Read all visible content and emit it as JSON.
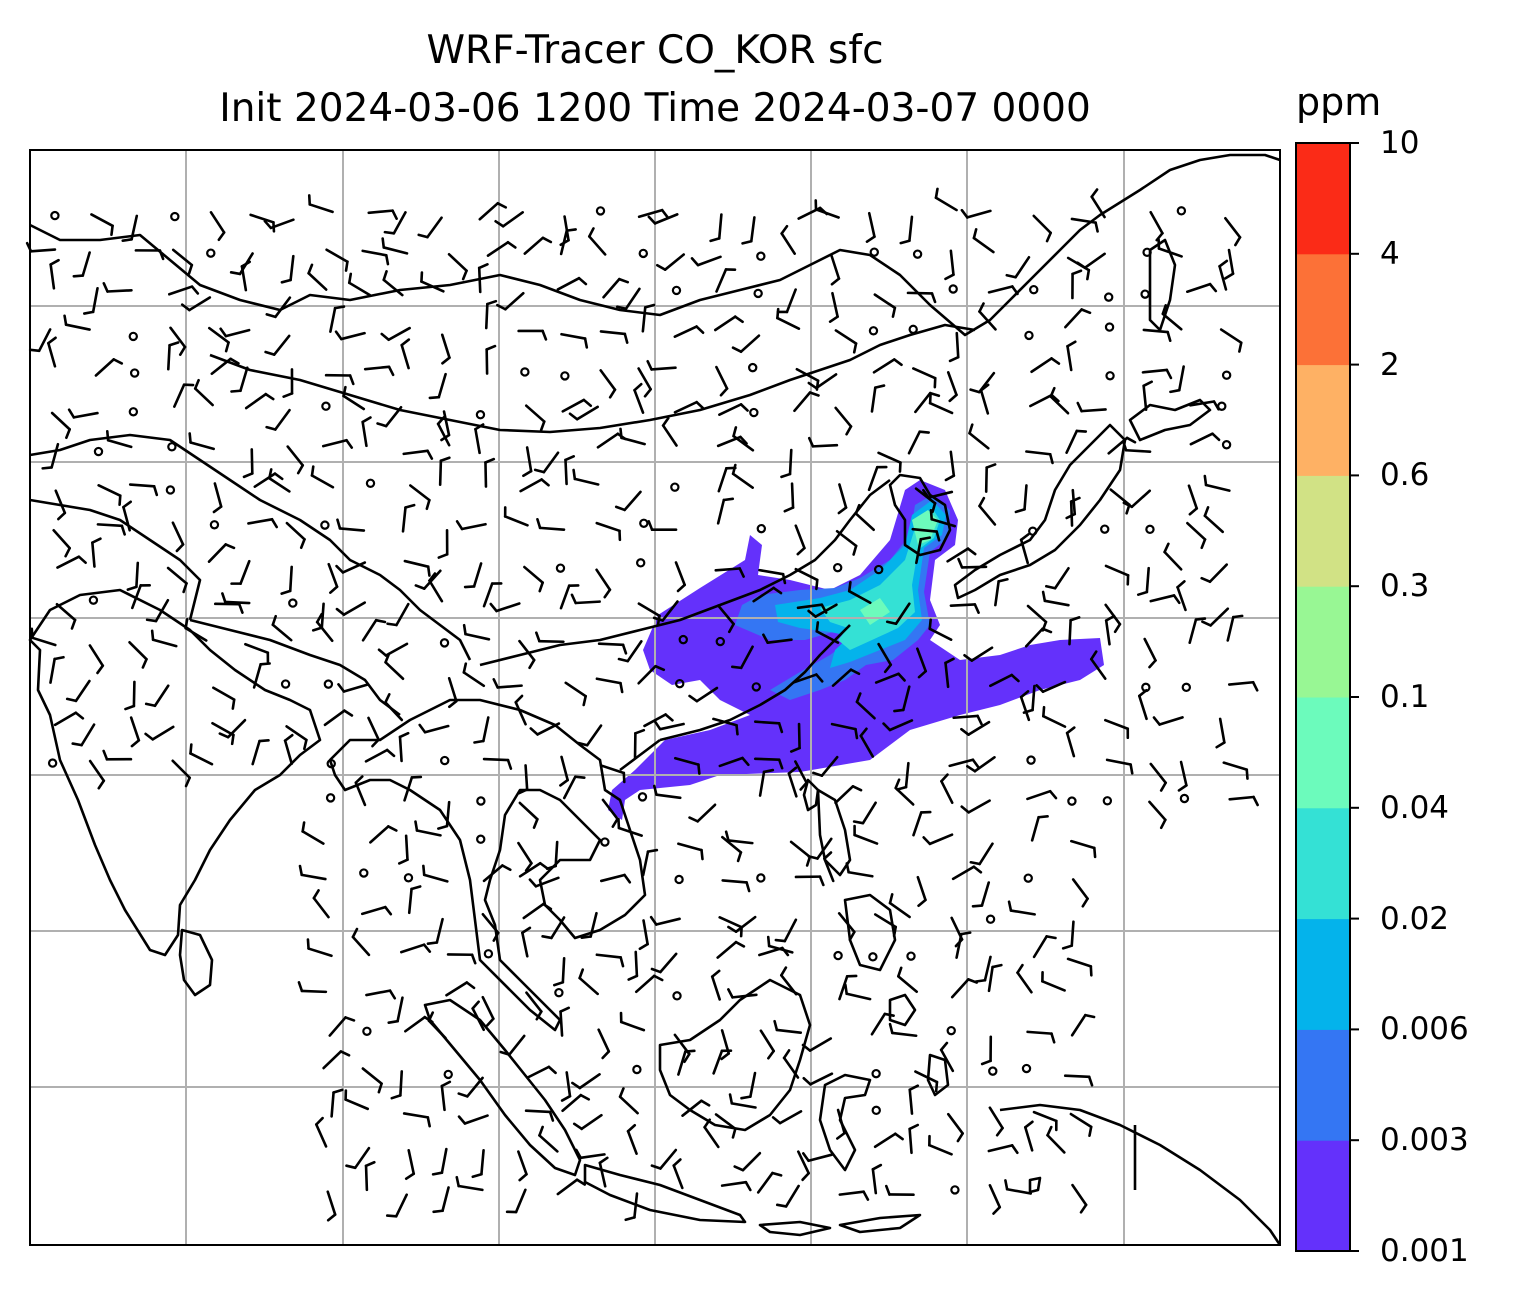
{
  "title": {
    "line1": "WRF-Tracer CO_KOR sfc",
    "line2": "Init 2024-03-06 1200 Time 2024-03-07 0000"
  },
  "colorbar": {
    "unit": "ppm",
    "levels": [
      "0.001",
      "0.003",
      "0.006",
      "0.02",
      "0.04",
      "0.1",
      "0.3",
      "0.6",
      "2",
      "4",
      "10"
    ],
    "colors": [
      "#6431fb",
      "#3476f3",
      "#04b3eb",
      "#34e1d5",
      "#6cfbbc",
      "#98f794",
      "#d1e285",
      "#feb164",
      "#fc7137",
      "#fb2b17"
    ]
  },
  "map": {
    "plume_colors": {
      "faint": "#6431fb",
      "low": "#3476f3",
      "mid": "#04b3eb",
      "high": "#34e1d5",
      "peak": "#6cfbbc"
    }
  }
}
